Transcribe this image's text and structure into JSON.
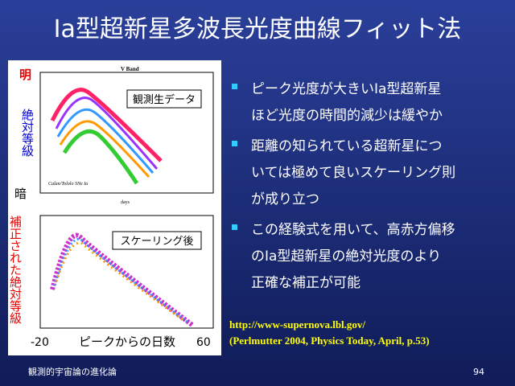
{
  "title": "Ia型超新星多波長光度曲線フィット法",
  "left_panel": {
    "bright": "明",
    "dark": "暗",
    "y_label_top": "絶対等級",
    "y_label_bottom": "補正された絶対等級",
    "top_plot": {
      "title": "V Band",
      "label": "観測生データ",
      "legend": "Calan/Tololo SNe Ia",
      "x_label": "days"
    },
    "bottom_plot": {
      "label": "スケーリング後"
    },
    "x_axis": {
      "start": "-20",
      "label": "ピークからの日数",
      "end": "60"
    }
  },
  "bullets": [
    [
      "ピーク光度が大きいIa型超新星",
      "ほど光度の時間的減少は緩やか"
    ],
    [
      "距離の知られている超新星につ",
      "いては極めて良いスケーリング則",
      "が成り立つ"
    ],
    [
      "この経験式を用いて、高赤方偏移",
      "のIa型超新星の絶対光度のより",
      "正確な補正が可能"
    ]
  ],
  "links": [
    "http://www-supernova.lbl.gov/",
    "(Perlmutter 2004, Physics Today,  April, p.53)"
  ],
  "footer": "観測的宇宙論の進化論",
  "page_number": "94"
}
